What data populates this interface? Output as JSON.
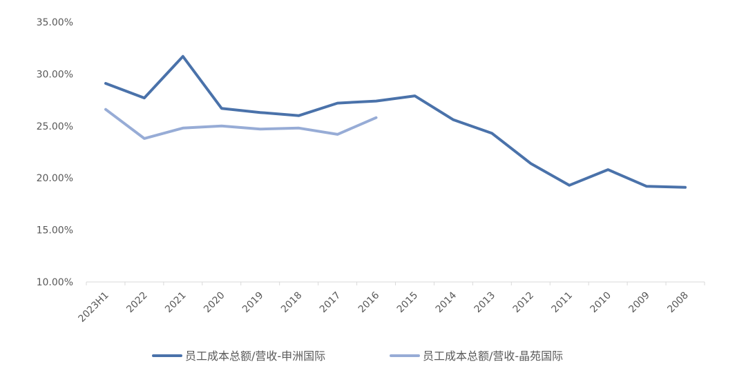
{
  "chart_data": {
    "type": "line",
    "title": "",
    "xlabel": "",
    "ylabel": "",
    "ylim": [
      10,
      35
    ],
    "y_ticks": [
      "35.00%",
      "30.00%",
      "25.00%",
      "20.00%",
      "15.00%",
      "10.00%"
    ],
    "y_tick_values": [
      35,
      30,
      25,
      20,
      15,
      10
    ],
    "categories": [
      "2023H1",
      "2022",
      "2021",
      "2020",
      "2019",
      "2018",
      "2017",
      "2016",
      "2015",
      "2014",
      "2013",
      "2012",
      "2011",
      "2010",
      "2009",
      "2008"
    ],
    "grid": false,
    "legend_position": "bottom",
    "series": [
      {
        "name": "员工成本总额/营收-申洲国际",
        "color": "#4a72aa",
        "values": [
          29.1,
          27.7,
          31.7,
          26.7,
          26.3,
          26.0,
          27.2,
          27.4,
          27.9,
          25.6,
          24.3,
          21.4,
          19.3,
          20.8,
          19.2,
          19.1
        ]
      },
      {
        "name": "员工成本总额/营收-晶苑国际",
        "color": "#97acd6",
        "values": [
          26.6,
          23.8,
          24.8,
          25.0,
          24.7,
          24.8,
          24.2,
          25.8,
          null,
          null,
          null,
          null,
          null,
          null,
          null,
          null
        ]
      }
    ]
  }
}
